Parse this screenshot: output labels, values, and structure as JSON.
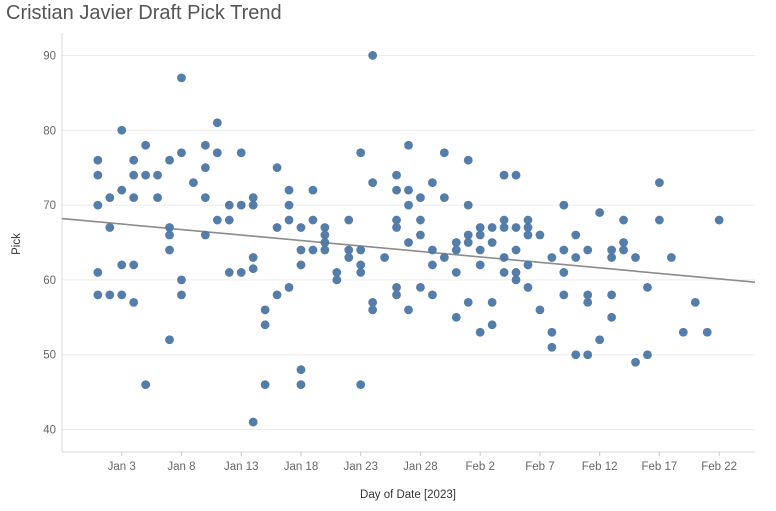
{
  "chart_data": {
    "type": "scatter",
    "title": "Cristian Javier Draft Pick Trend",
    "xlabel": "Day of Date [2023]",
    "ylabel": "Pick",
    "x_axis_kind": "date",
    "xlim": [
      "2022-12-29",
      "2023-02-25"
    ],
    "ylim": [
      37,
      93
    ],
    "x_ticks": [
      {
        "date": "2023-01-03",
        "label": "Jan 3"
      },
      {
        "date": "2023-01-08",
        "label": "Jan 8"
      },
      {
        "date": "2023-01-13",
        "label": "Jan 13"
      },
      {
        "date": "2023-01-18",
        "label": "Jan 18"
      },
      {
        "date": "2023-01-23",
        "label": "Jan 23"
      },
      {
        "date": "2023-01-28",
        "label": "Jan 28"
      },
      {
        "date": "2023-02-02",
        "label": "Feb 2"
      },
      {
        "date": "2023-02-07",
        "label": "Feb 7"
      },
      {
        "date": "2023-02-12",
        "label": "Feb 12"
      },
      {
        "date": "2023-02-17",
        "label": "Feb 17"
      },
      {
        "date": "2023-02-22",
        "label": "Feb 22"
      }
    ],
    "y_ticks": [
      40,
      50,
      60,
      70,
      80,
      90
    ],
    "grid": true,
    "marker_color": "#4e79a7",
    "trend_color": "#8c8c8c",
    "trend_line": [
      {
        "date": "2022-12-29",
        "y": 68.2
      },
      {
        "date": "2023-02-25",
        "y": 59.7
      }
    ],
    "points": [
      [
        "2023-01-01",
        76
      ],
      [
        "2023-01-01",
        74
      ],
      [
        "2023-01-01",
        70
      ],
      [
        "2023-01-01",
        61
      ],
      [
        "2023-01-01",
        58
      ],
      [
        "2023-01-02",
        71
      ],
      [
        "2023-01-02",
        67
      ],
      [
        "2023-01-02",
        58
      ],
      [
        "2023-01-03",
        80
      ],
      [
        "2023-01-03",
        72
      ],
      [
        "2023-01-03",
        62
      ],
      [
        "2023-01-03",
        58
      ],
      [
        "2023-01-04",
        76
      ],
      [
        "2023-01-04",
        74
      ],
      [
        "2023-01-04",
        71
      ],
      [
        "2023-01-04",
        62
      ],
      [
        "2023-01-04",
        57
      ],
      [
        "2023-01-05",
        78
      ],
      [
        "2023-01-05",
        74
      ],
      [
        "2023-01-05",
        46
      ],
      [
        "2023-01-06",
        74
      ],
      [
        "2023-01-06",
        71
      ],
      [
        "2023-01-07",
        76
      ],
      [
        "2023-01-07",
        67
      ],
      [
        "2023-01-07",
        66
      ],
      [
        "2023-01-07",
        64
      ],
      [
        "2023-01-07",
        52
      ],
      [
        "2023-01-08",
        87
      ],
      [
        "2023-01-08",
        77
      ],
      [
        "2023-01-08",
        60
      ],
      [
        "2023-01-08",
        58
      ],
      [
        "2023-01-09",
        73
      ],
      [
        "2023-01-10",
        78
      ],
      [
        "2023-01-10",
        75
      ],
      [
        "2023-01-10",
        71
      ],
      [
        "2023-01-10",
        66
      ],
      [
        "2023-01-11",
        81
      ],
      [
        "2023-01-11",
        77
      ],
      [
        "2023-01-11",
        68
      ],
      [
        "2023-01-12",
        70
      ],
      [
        "2023-01-12",
        68
      ],
      [
        "2023-01-12",
        61
      ],
      [
        "2023-01-13",
        77
      ],
      [
        "2023-01-13",
        70
      ],
      [
        "2023-01-13",
        61
      ],
      [
        "2023-01-14",
        71
      ],
      [
        "2023-01-14",
        70
      ],
      [
        "2023-01-14",
        63
      ],
      [
        "2023-01-14",
        61.5
      ],
      [
        "2023-01-14",
        41
      ],
      [
        "2023-01-15",
        56
      ],
      [
        "2023-01-15",
        54
      ],
      [
        "2023-01-15",
        46
      ],
      [
        "2023-01-16",
        75
      ],
      [
        "2023-01-16",
        67
      ],
      [
        "2023-01-16",
        58
      ],
      [
        "2023-01-17",
        72
      ],
      [
        "2023-01-17",
        70
      ],
      [
        "2023-01-17",
        68
      ],
      [
        "2023-01-17",
        59
      ],
      [
        "2023-01-18",
        67
      ],
      [
        "2023-01-18",
        64
      ],
      [
        "2023-01-18",
        62
      ],
      [
        "2023-01-18",
        48
      ],
      [
        "2023-01-18",
        46
      ],
      [
        "2023-01-19",
        72
      ],
      [
        "2023-01-19",
        68
      ],
      [
        "2023-01-19",
        64
      ],
      [
        "2023-01-20",
        67
      ],
      [
        "2023-01-20",
        66
      ],
      [
        "2023-01-20",
        65
      ],
      [
        "2023-01-20",
        64
      ],
      [
        "2023-01-21",
        61
      ],
      [
        "2023-01-21",
        60
      ],
      [
        "2023-01-22",
        68
      ],
      [
        "2023-01-22",
        64
      ],
      [
        "2023-01-22",
        63
      ],
      [
        "2023-01-23",
        77
      ],
      [
        "2023-01-23",
        64
      ],
      [
        "2023-01-23",
        62
      ],
      [
        "2023-01-23",
        61
      ],
      [
        "2023-01-23",
        46
      ],
      [
        "2023-01-24",
        90
      ],
      [
        "2023-01-24",
        73
      ],
      [
        "2023-01-24",
        57
      ],
      [
        "2023-01-24",
        56
      ],
      [
        "2023-01-25",
        63
      ],
      [
        "2023-01-26",
        74
      ],
      [
        "2023-01-26",
        72
      ],
      [
        "2023-01-26",
        68
      ],
      [
        "2023-01-26",
        67
      ],
      [
        "2023-01-26",
        59
      ],
      [
        "2023-01-26",
        58
      ],
      [
        "2023-01-27",
        78
      ],
      [
        "2023-01-27",
        72
      ],
      [
        "2023-01-27",
        70
      ],
      [
        "2023-01-27",
        65
      ],
      [
        "2023-01-27",
        56
      ],
      [
        "2023-01-28",
        71
      ],
      [
        "2023-01-28",
        68
      ],
      [
        "2023-01-28",
        66
      ],
      [
        "2023-01-28",
        59
      ],
      [
        "2023-01-29",
        73
      ],
      [
        "2023-01-29",
        64
      ],
      [
        "2023-01-29",
        62
      ],
      [
        "2023-01-29",
        58
      ],
      [
        "2023-01-30",
        77
      ],
      [
        "2023-01-30",
        71
      ],
      [
        "2023-01-30",
        63
      ],
      [
        "2023-01-31",
        65
      ],
      [
        "2023-01-31",
        64
      ],
      [
        "2023-01-31",
        61
      ],
      [
        "2023-01-31",
        55
      ],
      [
        "2023-02-01",
        76
      ],
      [
        "2023-02-01",
        70
      ],
      [
        "2023-02-01",
        66
      ],
      [
        "2023-02-01",
        65
      ],
      [
        "2023-02-01",
        57
      ],
      [
        "2023-02-02",
        67
      ],
      [
        "2023-02-02",
        66
      ],
      [
        "2023-02-02",
        64
      ],
      [
        "2023-02-02",
        62
      ],
      [
        "2023-02-02",
        53
      ],
      [
        "2023-02-03",
        67
      ],
      [
        "2023-02-03",
        65
      ],
      [
        "2023-02-03",
        57
      ],
      [
        "2023-02-03",
        54
      ],
      [
        "2023-02-04",
        74
      ],
      [
        "2023-02-04",
        68
      ],
      [
        "2023-02-04",
        67
      ],
      [
        "2023-02-04",
        63
      ],
      [
        "2023-02-04",
        61
      ],
      [
        "2023-02-05",
        74
      ],
      [
        "2023-02-05",
        67
      ],
      [
        "2023-02-05",
        64
      ],
      [
        "2023-02-05",
        61
      ],
      [
        "2023-02-05",
        60
      ],
      [
        "2023-02-06",
        68
      ],
      [
        "2023-02-06",
        67
      ],
      [
        "2023-02-06",
        66
      ],
      [
        "2023-02-06",
        62
      ],
      [
        "2023-02-06",
        59
      ],
      [
        "2023-02-07",
        66
      ],
      [
        "2023-02-07",
        56
      ],
      [
        "2023-02-08",
        63
      ],
      [
        "2023-02-08",
        53
      ],
      [
        "2023-02-08",
        51
      ],
      [
        "2023-02-09",
        70
      ],
      [
        "2023-02-09",
        64
      ],
      [
        "2023-02-09",
        61
      ],
      [
        "2023-02-09",
        58
      ],
      [
        "2023-02-10",
        66
      ],
      [
        "2023-02-10",
        63
      ],
      [
        "2023-02-10",
        50
      ],
      [
        "2023-02-11",
        64
      ],
      [
        "2023-02-11",
        58
      ],
      [
        "2023-02-11",
        57
      ],
      [
        "2023-02-11",
        50
      ],
      [
        "2023-02-12",
        69
      ],
      [
        "2023-02-12",
        52
      ],
      [
        "2023-02-13",
        64
      ],
      [
        "2023-02-13",
        63
      ],
      [
        "2023-02-13",
        58
      ],
      [
        "2023-02-13",
        55
      ],
      [
        "2023-02-14",
        68
      ],
      [
        "2023-02-14",
        65
      ],
      [
        "2023-02-14",
        64
      ],
      [
        "2023-02-15",
        63
      ],
      [
        "2023-02-15",
        49
      ],
      [
        "2023-02-16",
        59
      ],
      [
        "2023-02-16",
        50
      ],
      [
        "2023-02-17",
        73
      ],
      [
        "2023-02-17",
        68
      ],
      [
        "2023-02-18",
        63
      ],
      [
        "2023-02-19",
        53
      ],
      [
        "2023-02-20",
        57
      ],
      [
        "2023-02-21",
        53
      ],
      [
        "2023-02-22",
        68
      ]
    ]
  }
}
